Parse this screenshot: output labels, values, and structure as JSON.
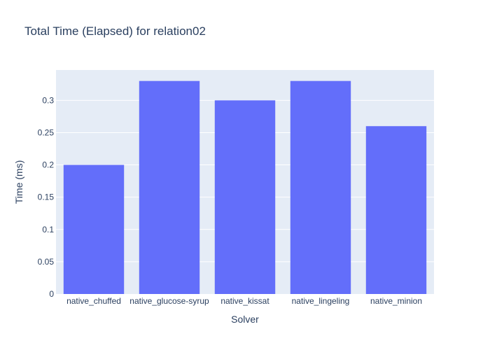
{
  "chart_data": {
    "type": "bar",
    "title": "Total Time (Elapsed) for relation02",
    "xlabel": "Solver",
    "ylabel": "Time (ms)",
    "categories": [
      "native_chuffed",
      "native_glucose-syrup",
      "native_kissat",
      "native_lingeling",
      "native_minion"
    ],
    "values": [
      0.2,
      0.33,
      0.3,
      0.33,
      0.26
    ],
    "ylim": [
      0,
      0.347
    ],
    "yticks": [
      0,
      0.05,
      0.1,
      0.15,
      0.2,
      0.25,
      0.3
    ],
    "ytick_labels": [
      "0",
      "0.05",
      "0.1",
      "0.15",
      "0.2",
      "0.25",
      "0.3"
    ],
    "grid": true,
    "legend": "none",
    "colors": {
      "bar": "#636efa",
      "plot_background": "#e5ecf6",
      "grid": "#ffffff",
      "text": "#2a3f5f"
    }
  }
}
